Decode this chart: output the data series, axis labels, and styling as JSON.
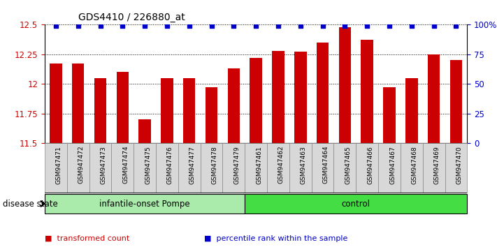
{
  "title": "GDS4410 / 226880_at",
  "samples": [
    "GSM947471",
    "GSM947472",
    "GSM947473",
    "GSM947474",
    "GSM947475",
    "GSM947476",
    "GSM947477",
    "GSM947478",
    "GSM947479",
    "GSM947461",
    "GSM947462",
    "GSM947463",
    "GSM947464",
    "GSM947465",
    "GSM947466",
    "GSM947467",
    "GSM947468",
    "GSM947469",
    "GSM947470"
  ],
  "red_values": [
    12.17,
    12.17,
    12.05,
    12.1,
    11.7,
    12.05,
    12.05,
    11.97,
    12.13,
    12.22,
    12.28,
    12.27,
    12.35,
    12.48,
    12.37,
    11.97,
    12.05,
    12.25,
    12.2
  ],
  "blue_values": [
    12.49,
    12.49,
    12.49,
    12.49,
    12.49,
    12.49,
    12.49,
    12.49,
    12.49,
    12.49,
    12.49,
    12.49,
    12.49,
    12.49,
    12.49,
    12.49,
    12.49,
    12.49,
    12.49
  ],
  "groups": [
    {
      "label": "infantile-onset Pompe",
      "start": 0,
      "end": 9,
      "color": "#aaeaaa"
    },
    {
      "label": "control",
      "start": 9,
      "end": 19,
      "color": "#44dd44"
    }
  ],
  "ylim_left": [
    11.5,
    12.5
  ],
  "ylim_right": [
    0,
    100
  ],
  "yticks_left": [
    11.5,
    11.75,
    12.0,
    12.25,
    12.5
  ],
  "ytick_labels_left": [
    "11.5",
    "11.75",
    "12",
    "12.25",
    "12.5"
  ],
  "yticks_right": [
    0,
    25,
    50,
    75,
    100
  ],
  "ytick_labels_right": [
    "0",
    "25",
    "50",
    "75",
    "100%"
  ],
  "bar_color": "#CC0000",
  "dot_color": "#0000CC",
  "background_color": "#ffffff",
  "disease_state_label": "disease state",
  "legend_items": [
    {
      "label": "transformed count",
      "color": "#CC0000"
    },
    {
      "label": "percentile rank within the sample",
      "color": "#0000CC"
    }
  ],
  "bar_width": 0.55,
  "dot_size": 5,
  "xtick_bg": "#d8d8d8",
  "xtick_border": "#888888"
}
